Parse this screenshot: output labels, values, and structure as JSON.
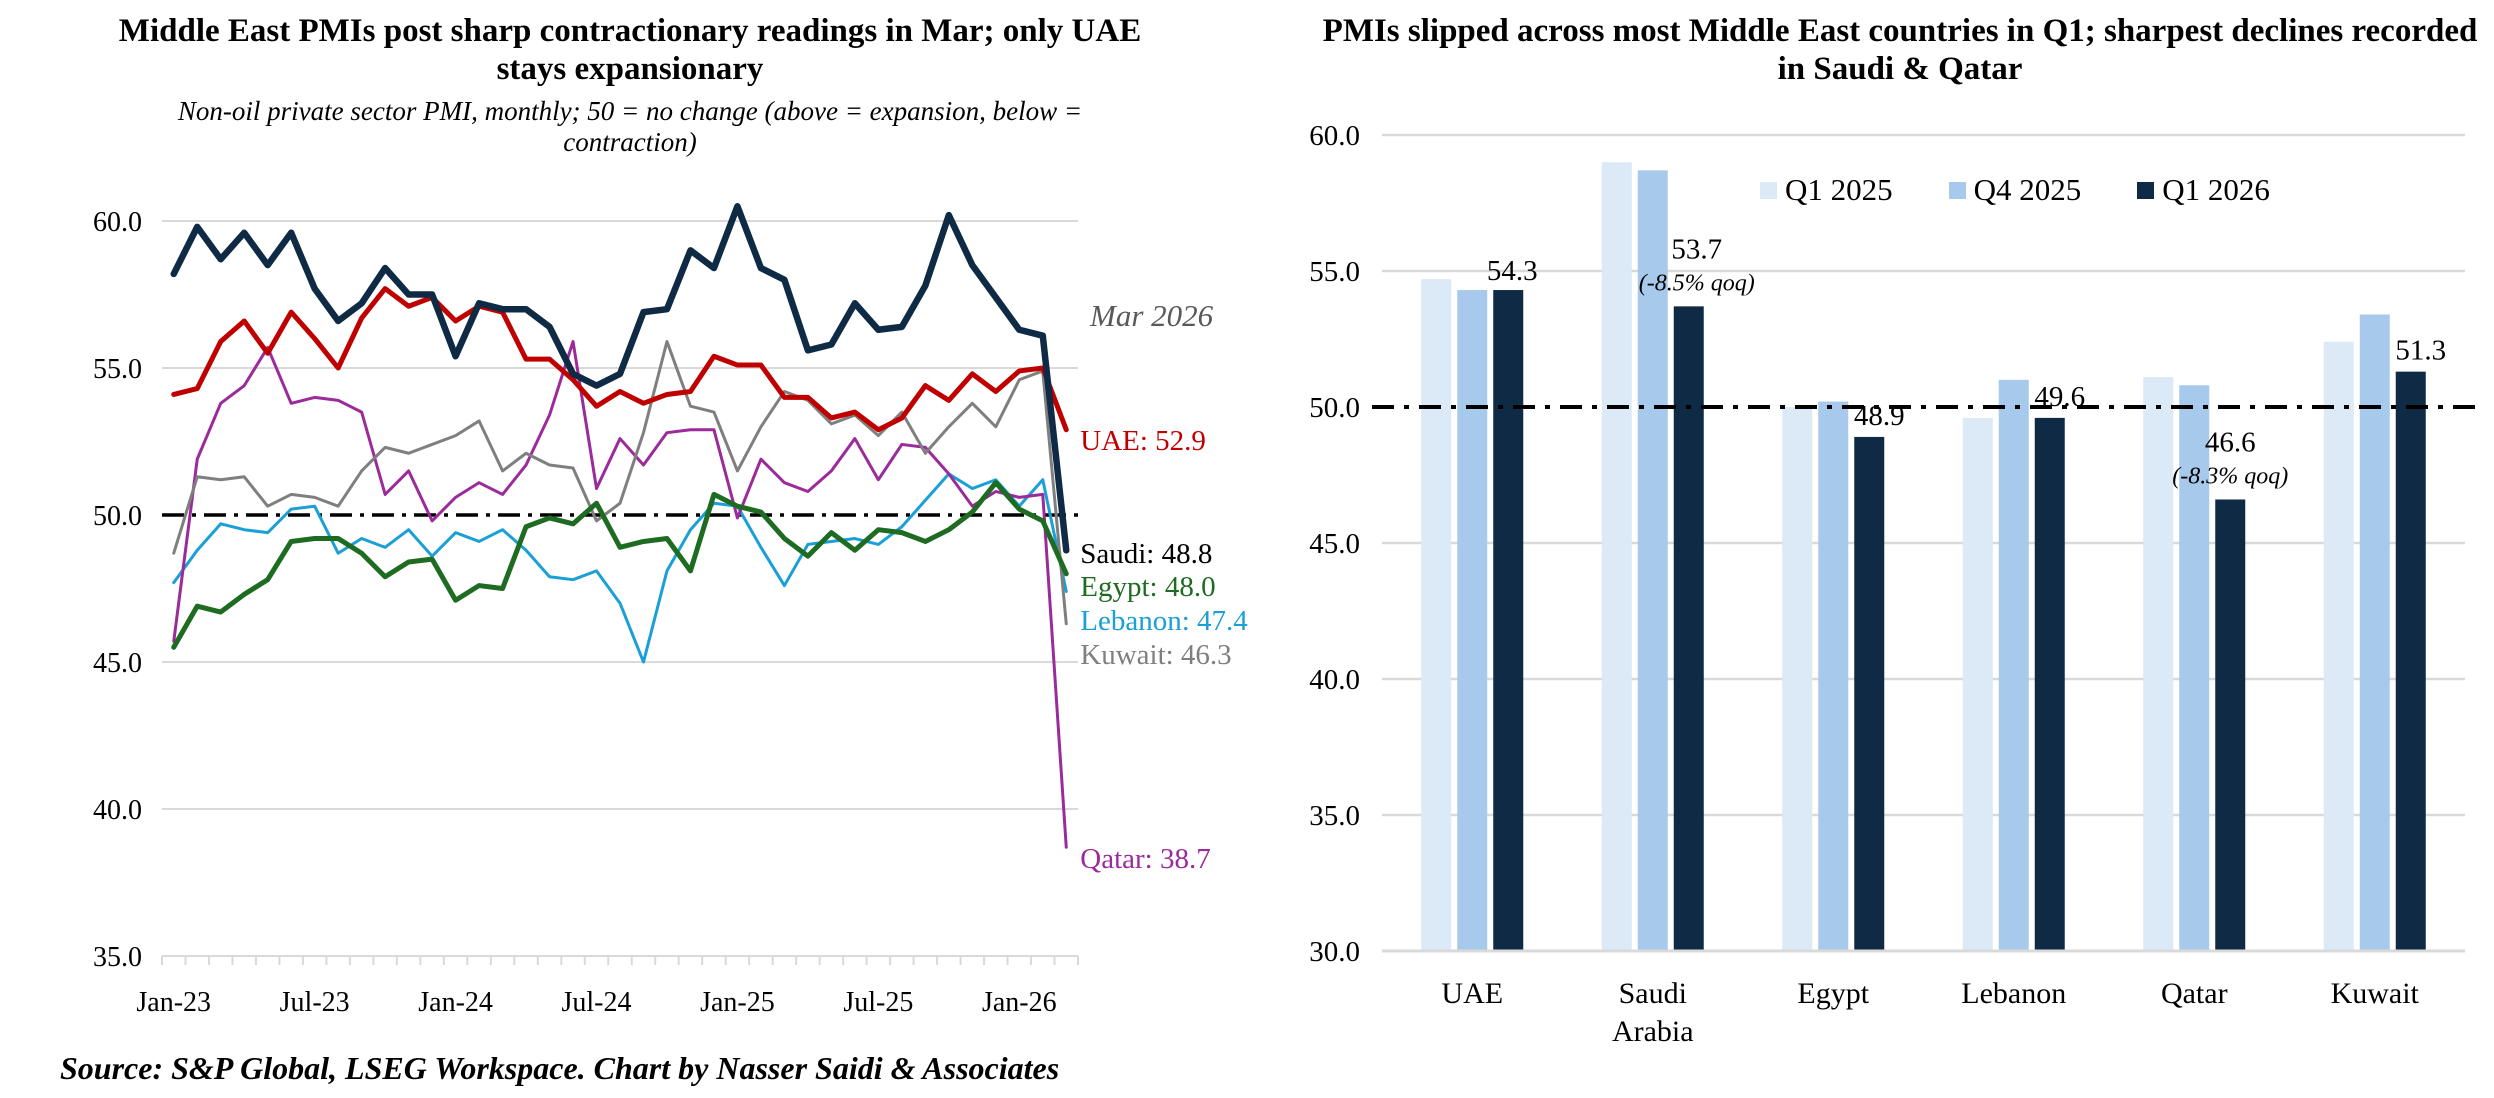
{
  "chart_data": [
    {
      "type": "line",
      "title": "Middle East PMIs post sharp contractionary readings in Mar; only UAE stays expansionary",
      "subtitle": "Non-oil private sector PMI, monthly; 50 = no change (above = expansion, below = contraction)",
      "xlabel": "",
      "ylabel": "",
      "ylim": [
        35,
        60
      ],
      "yticks": [
        "35.0",
        "40.0",
        "45.0",
        "50.0",
        "55.0",
        "60.0"
      ],
      "xtick_labels": [
        "Jan-23",
        "Jul-23",
        "Jan-24",
        "Jul-24",
        "Jan-25",
        "Jul-25",
        "Jan-26"
      ],
      "x": [
        "Jan-23",
        "Feb-23",
        "Mar-23",
        "Apr-23",
        "May-23",
        "Jun-23",
        "Jul-23",
        "Aug-23",
        "Sep-23",
        "Oct-23",
        "Nov-23",
        "Dec-23",
        "Jan-24",
        "Feb-24",
        "Mar-24",
        "Apr-24",
        "May-24",
        "Jun-24",
        "Jul-24",
        "Aug-24",
        "Sep-24",
        "Oct-24",
        "Nov-24",
        "Dec-24",
        "Jan-25",
        "Feb-25",
        "Mar-25",
        "Apr-25",
        "May-25",
        "Jun-25",
        "Jul-25",
        "Aug-25",
        "Sep-25",
        "Oct-25",
        "Nov-25",
        "Dec-25",
        "Jan-26",
        "Feb-26",
        "Mar-26"
      ],
      "reference_line": {
        "value": 50,
        "style": "dash-dot"
      },
      "grid": true,
      "annotation": "Mar 2026",
      "series": [
        {
          "name": "Saudi",
          "color": "#0f2a44",
          "end_label": "Saudi: 48.8",
          "label_color": "#000000",
          "values": [
            58.2,
            59.8,
            58.7,
            59.6,
            58.5,
            59.6,
            57.7,
            56.6,
            57.2,
            58.4,
            57.5,
            57.5,
            55.4,
            57.2,
            57.0,
            57.0,
            56.4,
            54.8,
            54.4,
            54.8,
            56.9,
            57.0,
            59.0,
            58.4,
            60.5,
            58.4,
            58.0,
            55.6,
            55.8,
            57.2,
            56.3,
            56.4,
            57.8,
            60.2,
            58.5,
            57.4,
            56.3,
            56.1,
            48.8
          ]
        },
        {
          "name": "UAE",
          "color": "#c00000",
          "end_label": "UAE: 52.9",
          "label_color": "#c00000",
          "values": [
            54.1,
            54.3,
            55.9,
            56.6,
            55.5,
            56.9,
            56.0,
            55.0,
            56.7,
            57.7,
            57.1,
            57.4,
            56.6,
            57.1,
            56.9,
            55.3,
            55.3,
            54.6,
            53.7,
            54.2,
            53.8,
            54.1,
            54.2,
            55.4,
            55.1,
            55.1,
            54.0,
            54.0,
            53.3,
            53.5,
            52.9,
            53.3,
            54.4,
            53.9,
            54.8,
            54.2,
            54.9,
            55.0,
            52.9
          ]
        },
        {
          "name": "Egypt",
          "color": "#1e6b22",
          "end_label": "Egypt: 48.0",
          "label_color": "#1e6b22",
          "values": [
            45.5,
            46.9,
            46.7,
            47.3,
            47.8,
            49.1,
            49.2,
            49.2,
            48.7,
            47.9,
            48.4,
            48.5,
            47.1,
            47.6,
            47.5,
            49.6,
            49.9,
            49.7,
            50.4,
            48.9,
            49.1,
            49.2,
            48.1,
            50.7,
            50.3,
            50.1,
            49.2,
            48.6,
            49.4,
            48.8,
            49.5,
            49.4,
            49.1,
            49.5,
            50.1,
            51.1,
            50.2,
            49.8,
            48.0
          ]
        },
        {
          "name": "Lebanon",
          "color": "#1a9fd6",
          "end_label": "Lebanon: 47.4",
          "label_color": "#1a9fd6",
          "values": [
            47.7,
            48.8,
            49.7,
            49.5,
            49.4,
            50.2,
            50.3,
            48.7,
            49.2,
            48.9,
            49.5,
            48.6,
            49.4,
            49.1,
            49.5,
            48.8,
            47.9,
            47.8,
            48.1,
            47.0,
            45.0,
            48.1,
            49.5,
            50.4,
            50.3,
            48.9,
            47.6,
            49.0,
            49.1,
            49.2,
            49.0,
            49.6,
            50.5,
            51.4,
            50.9,
            51.2,
            50.3,
            51.2,
            47.4
          ]
        },
        {
          "name": "Qatar",
          "color": "#9b2a9b",
          "end_label": "Qatar: 38.7",
          "label_color": "#9b2a9b",
          "values": [
            45.7,
            51.9,
            53.8,
            54.4,
            55.7,
            53.8,
            54.0,
            53.9,
            53.5,
            50.7,
            51.5,
            49.8,
            50.6,
            51.1,
            50.7,
            51.7,
            53.4,
            55.9,
            50.9,
            52.6,
            51.7,
            52.8,
            52.9,
            52.9,
            49.9,
            51.9,
            51.1,
            50.8,
            51.5,
            52.6,
            51.2,
            52.4,
            52.3,
            51.4,
            50.3,
            50.8,
            50.6,
            50.7,
            38.7
          ]
        },
        {
          "name": "Kuwait",
          "color": "#7f7f7f",
          "end_label": "Kuwait: 46.3",
          "label_color": "#7f7f7f",
          "values": [
            48.7,
            51.3,
            51.2,
            51.3,
            50.3,
            50.7,
            50.6,
            50.3,
            51.5,
            52.3,
            52.1,
            52.4,
            52.7,
            53.2,
            51.5,
            52.1,
            51.7,
            51.6,
            49.8,
            50.4,
            52.8,
            55.9,
            53.7,
            53.5,
            51.5,
            53.0,
            54.2,
            53.9,
            53.1,
            53.4,
            52.7,
            53.5,
            52.1,
            53.0,
            53.8,
            53.0,
            54.6,
            54.9,
            46.3
          ]
        }
      ]
    },
    {
      "type": "bar",
      "title": "PMIs slipped across most Middle East countries in Q1; sharpest declines recorded in Saudi & Qatar",
      "categories": [
        "UAE",
        "Saudi Arabia",
        "Egypt",
        "Lebanon",
        "Qatar",
        "Kuwait"
      ],
      "ylim": [
        30,
        60
      ],
      "yticks": [
        "30.0",
        "35.0",
        "40.0",
        "45.0",
        "50.0",
        "55.0",
        "60.0"
      ],
      "reference_line": {
        "value": 50,
        "style": "dash-dot"
      },
      "grid": true,
      "legend_position": "top",
      "series": [
        {
          "name": "Q1 2025",
          "color": "#dce9f6",
          "values": [
            54.7,
            59.0,
            50.0,
            49.6,
            51.1,
            52.4
          ]
        },
        {
          "name": "Q4 2025",
          "color": "#a7c9eb",
          "values": [
            54.3,
            58.7,
            50.2,
            51.0,
            50.8,
            53.4
          ]
        },
        {
          "name": "Q1 2026",
          "color": "#0f2a44",
          "values": [
            54.3,
            53.7,
            48.9,
            49.6,
            46.6,
            51.3
          ]
        }
      ],
      "data_labels": [
        "54.3",
        "53.7",
        "48.9",
        "49.6",
        "46.6",
        "51.3"
      ],
      "qoq_notes": [
        null,
        "(-8.5% qoq)",
        null,
        null,
        "(-8.3% qoq)",
        null
      ]
    }
  ],
  "source": "Source: S&P Global, LSEG Workspace. Chart by Nasser Saidi & Associates"
}
